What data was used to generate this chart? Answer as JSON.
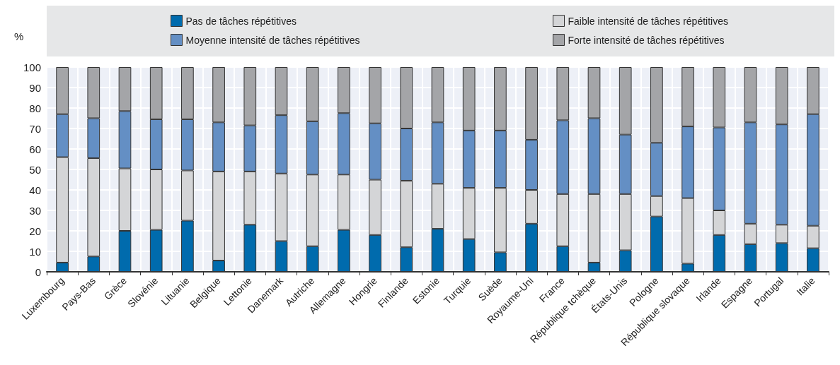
{
  "chart_data": {
    "type": "bar",
    "stacked": true,
    "ylabel": "%",
    "legend": "top",
    "grid": true,
    "categories": [
      "Luxembourg",
      "Pays-Bas",
      "Grèce",
      "Slovénie",
      "Lituanie",
      "Belgique",
      "Lettonie",
      "Danemark",
      "Autriche",
      "Allemagne",
      "Hongrie",
      "Finlande",
      "Estonie",
      "Turquie",
      "Suède",
      "Royaume-Uni",
      "France",
      "République tchèque",
      "États-Unis",
      "Pologne",
      "République slovaque",
      "Irlande",
      "Espagne",
      "Portugal",
      "Italie"
    ],
    "ylim": [
      0,
      100
    ],
    "yticks": [
      0,
      10,
      20,
      30,
      40,
      50,
      60,
      70,
      80,
      90,
      100
    ],
    "series": [
      {
        "name": "Pas de tâches répétitives",
        "color": "#006bad",
        "values": [
          4.5,
          7.5,
          20,
          20.5,
          25,
          5.5,
          23,
          15,
          12.5,
          20.5,
          18,
          12,
          21,
          16,
          9.5,
          23.5,
          12.5,
          4.5,
          10.5,
          27,
          4,
          18,
          13.5,
          14,
          11.5
        ]
      },
      {
        "name": "Faible intensité de tâches répétitives",
        "color": "#d4d5d7",
        "values": [
          51.5,
          48,
          30.5,
          29.5,
          24.5,
          43.5,
          26,
          33,
          35,
          27,
          27,
          32.5,
          22,
          25,
          31.5,
          16.5,
          25.5,
          33.5,
          27.5,
          10,
          32,
          12,
          10,
          9,
          11
        ]
      },
      {
        "name": "Moyenne intensité de tâches répétitives",
        "color": "#648fc4",
        "values": [
          21,
          19.5,
          28,
          24.5,
          25,
          24,
          22.5,
          28.5,
          26,
          30,
          27.5,
          25.5,
          30,
          28,
          28,
          24.5,
          36,
          37,
          29,
          26,
          35,
          40.5,
          49.5,
          49,
          54.5
        ]
      },
      {
        "name": "Forte intensité de tâches répétitives",
        "color": "#a4a5a8",
        "values": [
          23,
          25,
          21.5,
          25.5,
          25.5,
          27,
          28.5,
          23.5,
          26.5,
          22.5,
          27.5,
          30,
          27,
          31,
          31,
          35.5,
          26,
          25,
          33,
          37,
          29,
          29.5,
          27,
          28,
          23
        ]
      }
    ]
  }
}
